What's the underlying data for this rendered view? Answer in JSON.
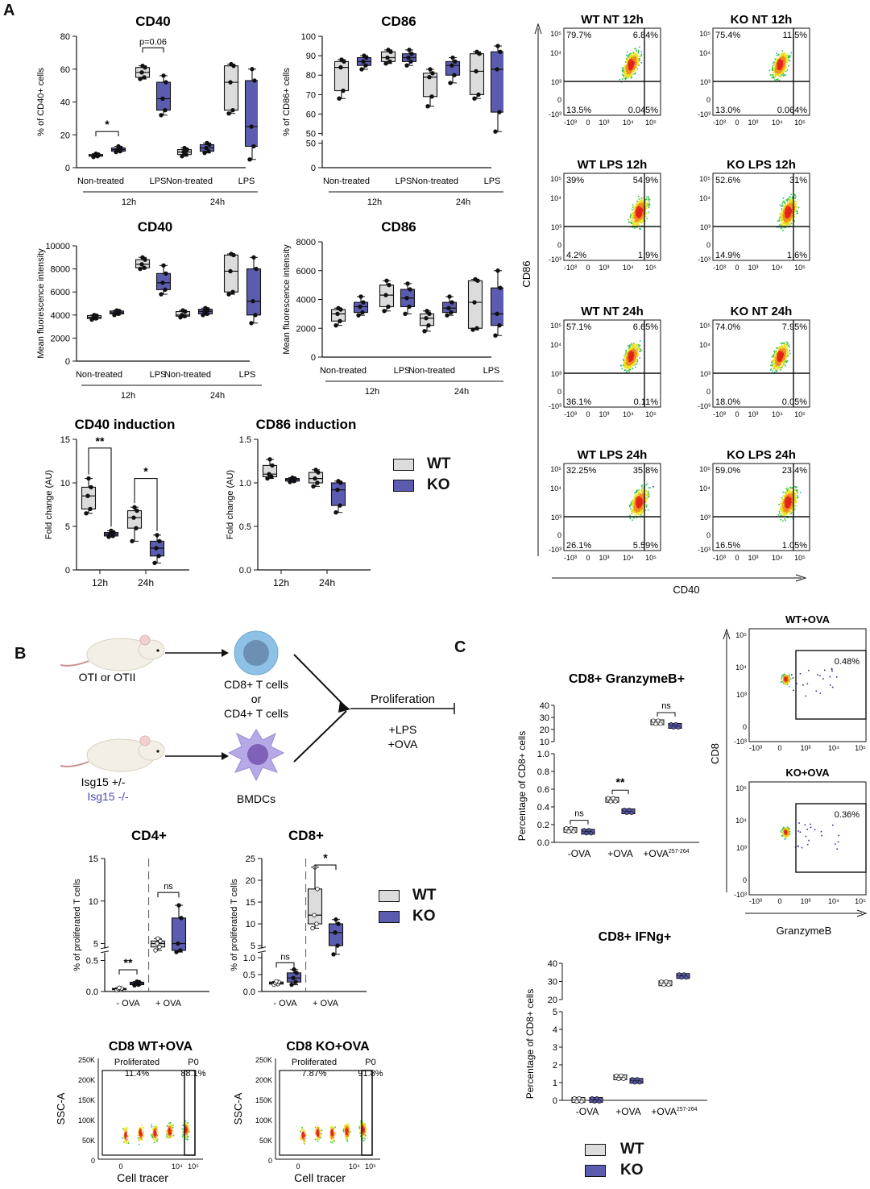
{
  "colors": {
    "wt": "#dcdcdc",
    "ko": "#5b5bb0",
    "axis": "#111111",
    "dot": "#111111"
  },
  "panel_letters": {
    "a": "A",
    "b": "B",
    "c": "C"
  },
  "legend": {
    "wt": "WT",
    "ko": "KO"
  },
  "box_plots": [
    {
      "id": "cd40-pct",
      "title": "CD40",
      "ylabel": "% of CD40+ cells",
      "yticks": [
        "0",
        "20",
        "40",
        "60",
        "80"
      ],
      "ymax": 80,
      "groups": [
        "Non-treated",
        "LPS",
        "Non-treated",
        "LPS"
      ],
      "times": [
        "12h",
        "24h"
      ],
      "annotations": [
        "*",
        "p=0.06"
      ],
      "boxes": [
        {
          "g": "wt",
          "min": 6.5,
          "q1": 7,
          "med": 7.5,
          "q3": 8,
          "max": 8.5
        },
        {
          "g": "ko",
          "min": 9.5,
          "q1": 10,
          "med": 11,
          "q3": 12,
          "max": 13
        },
        {
          "g": "wt",
          "min": 54,
          "q1": 55,
          "med": 58,
          "q3": 61,
          "max": 62
        },
        {
          "g": "ko",
          "min": 32,
          "q1": 35,
          "med": 42,
          "q3": 52,
          "max": 56
        },
        {
          "g": "wt",
          "min": 7,
          "q1": 8,
          "med": 9.5,
          "q3": 11,
          "max": 12
        },
        {
          "g": "ko",
          "min": 9,
          "q1": 10,
          "med": 12,
          "q3": 14,
          "max": 15
        },
        {
          "g": "wt",
          "min": 33,
          "q1": 35,
          "med": 52,
          "q3": 62,
          "max": 63
        },
        {
          "g": "ko",
          "min": 5,
          "q1": 13,
          "med": 25,
          "q3": 53,
          "max": 60
        }
      ]
    },
    {
      "id": "cd86-pct",
      "title": "CD86",
      "ylabel": "% of CD86+ cells",
      "yticks": [
        "0",
        "50",
        "50",
        "60",
        "70",
        "80",
        "90",
        "100"
      ],
      "groups": [
        "Non-treated",
        "LPS",
        "Non-treated",
        "LPS"
      ],
      "times": [
        "12h",
        "24h"
      ],
      "boxes": [
        {
          "g": "wt",
          "min": 68,
          "q1": 72,
          "med": 84,
          "q3": 87,
          "max": 88
        },
        {
          "g": "ko",
          "min": 83,
          "q1": 85,
          "med": 87,
          "q3": 89,
          "max": 90
        },
        {
          "g": "wt",
          "min": 86,
          "q1": 87,
          "med": 89,
          "q3": 92,
          "max": 93
        },
        {
          "g": "ko",
          "min": 85,
          "q1": 87,
          "med": 89,
          "q3": 91,
          "max": 93
        },
        {
          "g": "wt",
          "min": 64,
          "q1": 69,
          "med": 79,
          "q3": 81,
          "max": 83
        },
        {
          "g": "ko",
          "min": 76,
          "q1": 80,
          "med": 85,
          "q3": 87,
          "max": 89
        },
        {
          "g": "wt",
          "min": 68,
          "q1": 70,
          "med": 82,
          "q3": 91,
          "max": 92
        },
        {
          "g": "ko",
          "min": 51,
          "q1": 61,
          "med": 83,
          "q3": 92,
          "max": 95
        }
      ]
    },
    {
      "id": "cd40-mfi",
      "title": "CD40",
      "ylabel": "Mean fluorescence intensity",
      "yticks": [
        "0",
        "2000",
        "4000",
        "6000",
        "8000",
        "10000"
      ],
      "ymax": 10000,
      "groups": [
        "Non-treated",
        "LPS",
        "Non-treated",
        "LPS"
      ],
      "times": [
        "12h",
        "24h"
      ],
      "boxes": [
        {
          "g": "wt",
          "min": 3600,
          "q1": 3700,
          "med": 3800,
          "q3": 3950,
          "max": 4000
        },
        {
          "g": "ko",
          "min": 4000,
          "q1": 4100,
          "med": 4200,
          "q3": 4350,
          "max": 4400
        },
        {
          "g": "wt",
          "min": 8000,
          "q1": 8100,
          "med": 8400,
          "q3": 8800,
          "max": 9000
        },
        {
          "g": "ko",
          "min": 5800,
          "q1": 6200,
          "med": 6800,
          "q3": 7600,
          "max": 8300
        },
        {
          "g": "wt",
          "min": 3800,
          "q1": 3900,
          "med": 4000,
          "q3": 4300,
          "max": 4400
        },
        {
          "g": "ko",
          "min": 4000,
          "q1": 4100,
          "med": 4300,
          "q3": 4500,
          "max": 4600
        },
        {
          "g": "wt",
          "min": 5800,
          "q1": 6000,
          "med": 7800,
          "q3": 9200,
          "max": 9300
        },
        {
          "g": "ko",
          "min": 3300,
          "q1": 4000,
          "med": 5200,
          "q3": 8000,
          "max": 9000
        }
      ]
    },
    {
      "id": "cd86-mfi",
      "title": "CD86",
      "ylabel": "Mean fluorescence intensity",
      "yticks": [
        "0",
        "2000",
        "4000",
        "6000",
        "8000"
      ],
      "ymax": 8000,
      "groups": [
        "Non-treated",
        "LPS",
        "Non-treated",
        "LPS"
      ],
      "times": [
        "12h",
        "24h"
      ],
      "boxes": [
        {
          "g": "wt",
          "min": 2200,
          "q1": 2500,
          "med": 3000,
          "q3": 3300,
          "max": 3400
        },
        {
          "g": "ko",
          "min": 2900,
          "q1": 3100,
          "med": 3500,
          "q3": 3800,
          "max": 4200
        },
        {
          "g": "wt",
          "min": 3200,
          "q1": 3500,
          "med": 4300,
          "q3": 5000,
          "max": 5300
        },
        {
          "g": "ko",
          "min": 3000,
          "q1": 3500,
          "med": 4100,
          "q3": 4700,
          "max": 5100
        },
        {
          "g": "wt",
          "min": 1800,
          "q1": 2200,
          "med": 2700,
          "q3": 3000,
          "max": 3200
        },
        {
          "g": "ko",
          "min": 2900,
          "q1": 3100,
          "med": 3400,
          "q3": 3800,
          "max": 4200
        },
        {
          "g": "wt",
          "min": 1900,
          "q1": 2000,
          "med": 3800,
          "q3": 5300,
          "max": 5400
        },
        {
          "g": "ko",
          "min": 1500,
          "q1": 2200,
          "med": 3000,
          "q3": 4800,
          "max": 6000
        }
      ]
    },
    {
      "id": "cd40-ind",
      "title": "CD40 induction",
      "ylabel": "Fold change (AU)",
      "yticks": [
        "0",
        "5",
        "10",
        "15"
      ],
      "ymax": 15,
      "groups": [],
      "times": [
        "12h",
        "24h"
      ],
      "annotations": [
        "**",
        "*"
      ],
      "boxes": [
        {
          "g": "wt",
          "min": 6.5,
          "q1": 7,
          "med": 8.5,
          "q3": 9.5,
          "max": 10.5
        },
        {
          "g": "ko",
          "min": 3.8,
          "q1": 3.9,
          "med": 4.1,
          "q3": 4.3,
          "max": 4.5
        },
        {
          "g": "wt",
          "min": 3.3,
          "q1": 4.8,
          "med": 6,
          "q3": 6.8,
          "max": 7.2
        },
        {
          "g": "ko",
          "min": 0.8,
          "q1": 1.6,
          "med": 2.5,
          "q3": 3.3,
          "max": 4
        }
      ]
    },
    {
      "id": "cd86-ind",
      "title": "CD86 induction",
      "ylabel": "Fold change (AU)",
      "yticks": [
        "0.0",
        "0.5",
        "1.0",
        "1.5"
      ],
      "ymax": 1.5,
      "groups": [],
      "times": [
        "12h",
        "24h"
      ],
      "boxes": [
        {
          "g": "wt",
          "min": 1.05,
          "q1": 1.07,
          "med": 1.1,
          "q3": 1.2,
          "max": 1.27
        },
        {
          "g": "ko",
          "min": 1.01,
          "q1": 1.02,
          "med": 1.04,
          "q3": 1.05,
          "max": 1.06
        },
        {
          "g": "wt",
          "min": 0.96,
          "q1": 1,
          "med": 1.05,
          "q3": 1.12,
          "max": 1.15
        },
        {
          "g": "ko",
          "min": 0.66,
          "q1": 0.74,
          "med": 0.92,
          "q3": 1.0,
          "max": 1.02
        }
      ]
    },
    {
      "id": "cd4-prolif",
      "title": "CD4+",
      "ylabel": "% of proliferated T cells",
      "yticks": [
        "0.0",
        "0.5",
        "5",
        "10",
        "15"
      ],
      "groups": [
        "- OVA",
        "+ OVA"
      ],
      "times": [],
      "annotations": [
        "**",
        "ns"
      ],
      "boxes": [
        {
          "g": "wt",
          "min": 0.02,
          "q1": 0.03,
          "med": 0.04,
          "q3": 0.05,
          "max": 0.06
        },
        {
          "g": "ko",
          "min": 0.1,
          "q1": 0.11,
          "med": 0.13,
          "q3": 0.15,
          "max": 0.16
        },
        {
          "g": "wt",
          "min": 4.2,
          "q1": 4.6,
          "med": 5.0,
          "q3": 5.3,
          "max": 5.6
        },
        {
          "g": "ko",
          "min": 4.0,
          "q1": 4.2,
          "med": 5.0,
          "q3": 8.0,
          "max": 9.5
        }
      ]
    },
    {
      "id": "cd8-prolif",
      "title": "CD8+",
      "ylabel": "% of proliferated T cells",
      "yticks": [
        "0.0",
        "0.5",
        "1.0",
        "5",
        "10",
        "15",
        "20",
        "25"
      ],
      "groups": [
        "- OVA",
        "+ OVA"
      ],
      "times": [],
      "annotations": [
        "ns",
        "*"
      ],
      "boxes": [
        {
          "g": "wt",
          "min": 0.2,
          "q1": 0.22,
          "med": 0.25,
          "q3": 0.28,
          "max": 0.3
        },
        {
          "g": "ko",
          "min": 0.2,
          "q1": 0.28,
          "med": 0.4,
          "q3": 0.55,
          "max": 0.65
        },
        {
          "g": "wt",
          "min": 9,
          "q1": 10,
          "med": 12,
          "q3": 18,
          "max": 23
        },
        {
          "g": "ko",
          "min": 3,
          "q1": 5,
          "med": 8,
          "q3": 10,
          "max": 11
        }
      ]
    }
  ],
  "flow_a": {
    "ylabel": "CD86",
    "xlabel": "CD40",
    "plots": [
      {
        "title": "WT NT 12h",
        "ul": "79.7%",
        "ur": "6.84%",
        "ll": "13.5%",
        "lr": "0.045%"
      },
      {
        "title": "KO NT 12h",
        "ul": "75.4%",
        "ur": "11.5%",
        "ll": "13.0%",
        "lr": "0.064%"
      },
      {
        "title": "WT LPS 12h",
        "ul": "39%",
        "ur": "54.9%",
        "ll": "4.2%",
        "lr": "1.9%"
      },
      {
        "title": "KO LPS 12h",
        "ul": "52.6%",
        "ur": "31%",
        "ll": "14.9%",
        "lr": "1.6%"
      },
      {
        "title": "WT NT 24h",
        "ul": "57.1%",
        "ur": "6.65%",
        "ll": "36.1%",
        "lr": "0.11%"
      },
      {
        "title": "KO NT 24h",
        "ul": "74.0%",
        "ur": "7.95%",
        "ll": "18.0%",
        "lr": "0.05%"
      },
      {
        "title": "WT LPS 24h",
        "ul": "32.25%",
        "ur": "35.8%",
        "ll": "26.1%",
        "lr": "5.59%"
      },
      {
        "title": "KO LPS 24h",
        "ul": "59.0%",
        "ur": "23.4%",
        "ll": "16.5%",
        "lr": "1.05%"
      }
    ],
    "yticks": [
      "10⁵",
      "10⁴",
      "10³",
      "0",
      "-10³"
    ],
    "xticks": [
      "-10³",
      "0",
      "10³",
      "10⁴",
      "10⁵"
    ]
  },
  "schematic": {
    "mouse1": "OTI or OTII",
    "tcells": [
      "CD8+ T cells",
      "or",
      "CD4+ T cells"
    ],
    "mouse2a": "Isg15 +/-",
    "mouse2b": "Isg15 -/-",
    "bmdc": "BMDCs",
    "prolif": "Proliferation",
    "lps": "+LPS",
    "ova": "+OVA"
  },
  "flow_b": [
    {
      "title": "CD8 WT+OVA",
      "gate1": "Proliferated",
      "gate1v": "11.4%",
      "gate2": "P0",
      "gate2v": "88.1%"
    },
    {
      "title": "CD8 KO+OVA",
      "gate1": "Proliferated",
      "gate1v": "7.87%",
      "gate2": "P0",
      "gate2v": "91.8%"
    }
  ],
  "flow_b_axes": {
    "ylabel": "SSC-A",
    "xlabel": "Cell tracer",
    "yticks": [
      "250K",
      "200K",
      "150K",
      "100K",
      "50K",
      "0"
    ],
    "xticks": [
      "0",
      "10⁴",
      "10⁵"
    ]
  },
  "dot_plots": [
    {
      "title": "CD8+ GranzymeB+",
      "ylabel": "Percentage of CD8+ cells",
      "groups": [
        "-OVA",
        "+OVA",
        "+OVA"
      ],
      "sup": "257-264",
      "annotations": [
        "ns",
        "**",
        "ns"
      ],
      "yticks_top": [
        "10",
        "20",
        "30",
        "40"
      ],
      "yticks_bot": [
        "0.0",
        "0.2",
        "0.4",
        "0.6",
        "0.8",
        "1.0"
      ],
      "vals": {
        "wt": [
          0.14,
          0.48,
          26
        ],
        "ko": [
          0.12,
          0.35,
          23
        ]
      }
    },
    {
      "title": "CD8+ IFNg+",
      "ylabel": "Percentage of CD8+ cells",
      "groups": [
        "-OVA",
        "+OVA",
        "+OVA"
      ],
      "sup": "257-264",
      "annotations": [],
      "yticks_top": [
        "20",
        "30",
        "40"
      ],
      "yticks_bot": [
        "0",
        "1",
        "2",
        "3",
        "4",
        "5"
      ],
      "vals": {
        "wt": [
          0.02,
          1.3,
          29
        ],
        "ko": [
          0.02,
          1.1,
          33
        ]
      }
    }
  ],
  "flow_c": {
    "ylabel": "CD8",
    "xlabel": "GranzymeB",
    "plots": [
      {
        "title": "WT+OVA",
        "gate": "0.48%"
      },
      {
        "title": "KO+OVA",
        "gate": "0.36%"
      }
    ],
    "yticks": [
      "10⁵",
      "10⁴",
      "10³",
      "0",
      "-10³"
    ],
    "xticks": [
      "-10³",
      "0",
      "10³",
      "10⁴",
      "10⁵"
    ]
  }
}
